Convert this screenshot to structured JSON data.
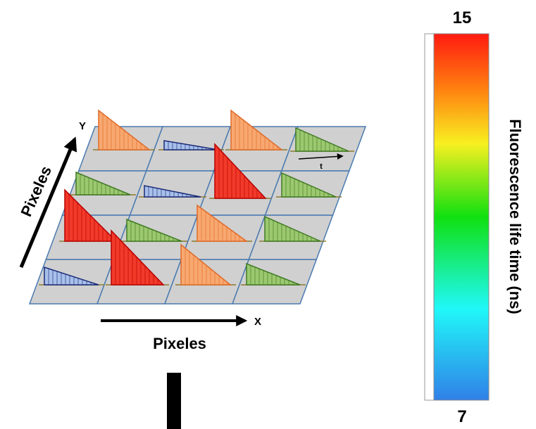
{
  "diagram": {
    "y_axis": {
      "letter": "Y",
      "label": "Pixeles"
    },
    "x_axis": {
      "letter": "X",
      "label": "Pixeles"
    },
    "time_label": "t",
    "colorbar": {
      "max_label": "15",
      "min_label": "7",
      "title": "Fluorescence life time (ns)"
    }
  }
}
